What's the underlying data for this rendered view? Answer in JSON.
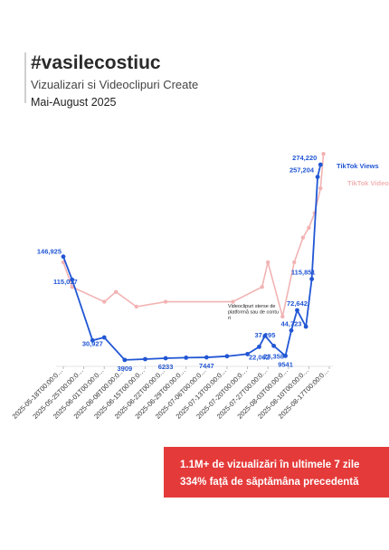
{
  "header": {
    "title": "#vasilecostiuc",
    "subtitle": "Vizualizari si Videoclipuri Create",
    "period": "Mai-August 2025"
  },
  "callout": {
    "line1": "1.1M+ de vizualizări în ultimele 7 zile",
    "line2": "334% față de săptămâna precedentă"
  },
  "colors": {
    "views": "#2156d4",
    "videos": "#f2b3b3",
    "callout_bg": "#e53a3a"
  },
  "chart_data": {
    "type": "line",
    "x_ticks": [
      "2025-05-18T00:00:0…",
      "2025-05-25T00:00:0…",
      "2025-06-01T00:00:0…",
      "2025-06-08T00:00:0…",
      "2025-06-15T00:00:0…",
      "2025-06-22T00:00:0…",
      "2025-06-29T00:00:0…",
      "2025-07-06T00:00:0…",
      "2025-07-13T00:00:0…",
      "2025-07-20T00:00:0…",
      "2025-07-27T00:00:0…",
      "2025-08-03T00:00:0…",
      "2025-08-10T00:00:0…",
      "2025-08-17T00:00:0…"
    ],
    "annotation": "Videoclipuri sterse de platformă sau de conturi",
    "series": [
      {
        "name": "TikTok Views",
        "color": "#2156d4",
        "points": [
          {
            "x": "2025-05-18",
            "y": 146925,
            "label": "146,925"
          },
          {
            "x": "2025-05-21",
            "y": 115017,
            "label": "115,017"
          },
          {
            "x": "2025-05-28",
            "y": 30927,
            "label": "30,927"
          },
          {
            "x": "2025-06-01",
            "y": 35000
          },
          {
            "x": "2025-06-08",
            "y": 3909,
            "label": "3909"
          },
          {
            "x": "2025-06-15",
            "y": 5000
          },
          {
            "x": "2025-06-22",
            "y": 6233,
            "label": "6233"
          },
          {
            "x": "2025-06-29",
            "y": 7000
          },
          {
            "x": "2025-07-06",
            "y": 7447,
            "label": "7447"
          },
          {
            "x": "2025-07-13",
            "y": 9000
          },
          {
            "x": "2025-07-20",
            "y": 12000
          },
          {
            "x": "2025-07-24",
            "y": 22062,
            "label": "22,062"
          },
          {
            "x": "2025-07-26",
            "y": 37295,
            "label": "37,295"
          },
          {
            "x": "2025-07-29",
            "y": 23358,
            "label": "23,358"
          },
          {
            "x": "2025-08-02",
            "y": 9541,
            "label": "9541"
          },
          {
            "x": "2025-08-04",
            "y": 44723,
            "label": "44,723"
          },
          {
            "x": "2025-08-06",
            "y": 72642,
            "label": "72,642"
          },
          {
            "x": "2025-08-09",
            "y": 50000
          },
          {
            "x": "2025-08-11",
            "y": 115851,
            "label": "115,851"
          },
          {
            "x": "2025-08-13",
            "y": 257204,
            "label": "257,204"
          },
          {
            "x": "2025-08-14",
            "y": 274220,
            "label": "274,220"
          }
        ]
      },
      {
        "name": "TikTok Video",
        "color": "#f2b3b3",
        "points": [
          {
            "x": "2025-05-18",
            "y": 9
          },
          {
            "x": "2025-05-21",
            "y": 4
          },
          {
            "x": "2025-06-01",
            "y": 1
          },
          {
            "x": "2025-06-05",
            "y": 3
          },
          {
            "x": "2025-06-12",
            "y": 0
          },
          {
            "x": "2025-06-22",
            "y": 1
          },
          {
            "x": "2025-07-15",
            "y": 1
          },
          {
            "x": "2025-07-25",
            "y": 4
          },
          {
            "x": "2025-07-27",
            "y": 9
          },
          {
            "x": "2025-08-01",
            "y": -2
          },
          {
            "x": "2025-08-05",
            "y": 9
          },
          {
            "x": "2025-08-08",
            "y": 14
          },
          {
            "x": "2025-08-10",
            "y": 16
          },
          {
            "x": "2025-08-12",
            "y": 19
          },
          {
            "x": "2025-08-14",
            "y": 24
          },
          {
            "x": "2025-08-15",
            "y": 31
          }
        ]
      }
    ]
  }
}
